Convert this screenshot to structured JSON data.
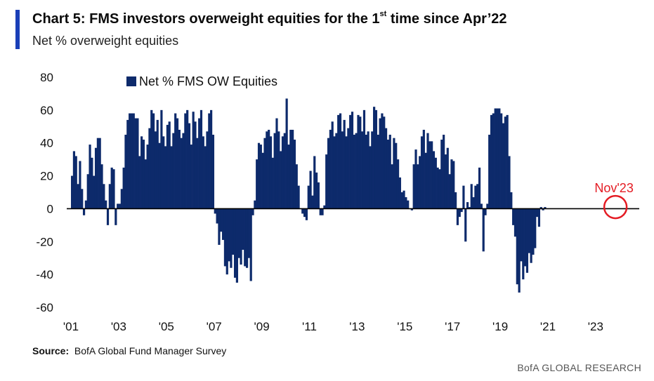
{
  "header": {
    "title_pre": "Chart 5: FMS investors overweight equities for the 1",
    "title_sup": "st",
    "title_post": " time since Apr’22",
    "subtitle": "Net % overweight equities"
  },
  "source": {
    "label": "Source:",
    "text": "BofA Global Fund Manager Survey"
  },
  "footer": {
    "text": "BofA GLOBAL RESEARCH"
  },
  "colors": {
    "bar": "#0d2a6b",
    "accent": "#1a3fb8",
    "annotation": "#e41b23",
    "axis": "#000000"
  },
  "chart_data": {
    "type": "bar",
    "title": "",
    "ylabel": "",
    "xlabel": "",
    "ylim": [
      -60,
      80
    ],
    "yticks": [
      80,
      60,
      40,
      20,
      0,
      -20,
      -40,
      -60
    ],
    "xlim": [
      2001.0,
      2024.83
    ],
    "xticks": [
      {
        "label": "'01",
        "x": 2001
      },
      {
        "label": "'03",
        "x": 2003
      },
      {
        "label": "'05",
        "x": 2005
      },
      {
        "label": "'07",
        "x": 2007
      },
      {
        "label": "'09",
        "x": 2009
      },
      {
        "label": "'11",
        "x": 2011
      },
      {
        "label": "'13",
        "x": 2013
      },
      {
        "label": "'15",
        "x": 2015
      },
      {
        "label": "'17",
        "x": 2017
      },
      {
        "label": "'19",
        "x": 2019
      },
      {
        "label": "'21",
        "x": 2021
      },
      {
        "label": "'23",
        "x": 2023
      }
    ],
    "legend": {
      "position": "top-left"
    },
    "annotation": {
      "label": "Nov'23",
      "x": 2023.83,
      "y": 1
    },
    "series": [
      {
        "name": "Net % FMS OW Equities",
        "frequency": "monthly",
        "start": "2001-01",
        "values": [
          20,
          35,
          32,
          15,
          29,
          12,
          -4,
          5,
          21,
          39,
          31,
          20,
          37,
          43,
          43,
          27,
          15,
          5,
          -10,
          15,
          25,
          24,
          -10,
          3,
          3,
          12,
          25,
          45,
          54,
          58,
          58,
          58,
          55,
          55,
          32,
          44,
          42,
          30,
          39,
          49,
          60,
          58,
          47,
          54,
          40,
          60,
          44,
          38,
          51,
          53,
          38,
          46,
          58,
          55,
          48,
          43,
          46,
          58,
          60,
          52,
          39,
          59,
          53,
          43,
          55,
          60,
          44,
          38,
          47,
          58,
          60,
          45,
          -3,
          -9,
          -22,
          -14,
          -19,
          -35,
          -40,
          -32,
          -36,
          -28,
          -42,
          -45,
          -30,
          -34,
          -25,
          -35,
          -36,
          -30,
          -44,
          -4,
          5,
          30,
          40,
          39,
          34,
          43,
          47,
          48,
          44,
          31,
          46,
          55,
          47,
          35,
          44,
          46,
          67,
          39,
          48,
          48,
          42,
          27,
          14,
          0,
          -3,
          -5,
          -7,
          14,
          23,
          8,
          32,
          22,
          16,
          -4,
          -4,
          2,
          33,
          43,
          48,
          53,
          44,
          46,
          57,
          58,
          47,
          54,
          44,
          49,
          57,
          59,
          45,
          46,
          57,
          56,
          47,
          60,
          45,
          47,
          38,
          47,
          62,
          60,
          45,
          55,
          58,
          56,
          49,
          42,
          45,
          27,
          43,
          40,
          30,
          19,
          10,
          11,
          7,
          5,
          0,
          -1,
          27,
          36,
          27,
          32,
          44,
          48,
          34,
          46,
          41,
          41,
          35,
          31,
          25,
          24,
          42,
          45,
          33,
          37,
          21,
          30,
          29,
          10,
          -10,
          -5,
          -2,
          14,
          -20,
          4,
          1,
          15,
          7,
          14,
          15,
          25,
          3,
          -26,
          -4,
          3,
          45,
          57,
          58,
          61,
          61,
          61,
          58,
          52,
          56,
          57,
          32,
          10,
          -10,
          -17,
          -46,
          -51,
          -32,
          -43,
          -35,
          -39,
          -27,
          -33,
          -28,
          -24,
          -5,
          -11,
          1,
          -1,
          1
        ]
      }
    ]
  }
}
